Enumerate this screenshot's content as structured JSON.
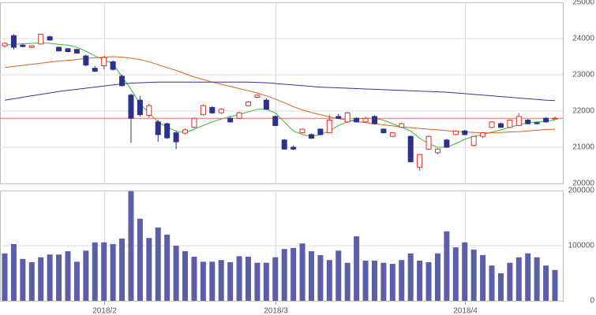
{
  "chart_data": [
    {
      "type": "candlestick",
      "categories": [
        null,
        null,
        null,
        null,
        null,
        null,
        null,
        null,
        null,
        null,
        null,
        "2018/2",
        null,
        null,
        null,
        null,
        null,
        null,
        null,
        null,
        null,
        null,
        null,
        null,
        null,
        null,
        null,
        null,
        null,
        null,
        "2018/3",
        null,
        null,
        null,
        null,
        null,
        null,
        null,
        null,
        null,
        null,
        null,
        null,
        null,
        null,
        null,
        null,
        null,
        null,
        null,
        null,
        "2018/4",
        null,
        null,
        null,
        null,
        null,
        null,
        null,
        null,
        null,
        null
      ],
      "open": [
        23800,
        24080,
        23820,
        23760,
        23850,
        24050,
        23760,
        23720,
        23700,
        23520,
        23180,
        23250,
        23360,
        22960,
        22440,
        22300,
        21880,
        21700,
        21650,
        21400,
        21390,
        21550,
        21900,
        22100,
        21950,
        21800,
        21800,
        22150,
        22380,
        22300,
        21850,
        21200,
        21000,
        21400,
        21350,
        21500,
        21400,
        21850,
        21700,
        21800,
        21700,
        21850,
        21500,
        21300,
        21550,
        21300,
        20450,
        20950,
        20850,
        21200,
        21350,
        21450,
        21050,
        21300,
        21550,
        21650,
        21550,
        21600,
        21750,
        21680,
        21800,
        21780
      ],
      "high": [
        23900,
        24120,
        23850,
        23820,
        24130,
        24080,
        23780,
        23740,
        23720,
        23560,
        23240,
        23520,
        23400,
        23000,
        22480,
        22420,
        22200,
        21760,
        21680,
        21450,
        21520,
        21820,
        22180,
        22130,
        22080,
        21840,
        21980,
        22280,
        22470,
        22350,
        21880,
        21230,
        21050,
        21520,
        21380,
        21520,
        21900,
        21920,
        21980,
        21830,
        21850,
        21880,
        21520,
        21420,
        21670,
        21330,
        20820,
        21320,
        20980,
        21230,
        21470,
        21480,
        21320,
        21420,
        21720,
        21680,
        21770,
        21950,
        21780,
        21700,
        21830,
        21850
      ],
      "low": [
        23750,
        23700,
        23760,
        23740,
        23840,
        23940,
        23640,
        23620,
        23580,
        23230,
        23080,
        23150,
        23120,
        22680,
        21120,
        21850,
        21820,
        21150,
        21230,
        20950,
        21350,
        21530,
        21880,
        21920,
        21920,
        21680,
        21780,
        22130,
        22350,
        22030,
        21580,
        20930,
        20920,
        21380,
        21230,
        21330,
        21380,
        21780,
        21680,
        21680,
        21680,
        21630,
        21380,
        21280,
        21530,
        20580,
        20350,
        20920,
        20800,
        20980,
        21330,
        21330,
        21020,
        21250,
        21530,
        21530,
        21530,
        21580,
        21630,
        21630,
        21680,
        21760
      ],
      "close": [
        23870,
        23760,
        23780,
        23800,
        24120,
        23960,
        23660,
        23640,
        23600,
        23270,
        23100,
        23480,
        23150,
        22700,
        21800,
        21900,
        22150,
        21350,
        21260,
        21150,
        21480,
        21800,
        22150,
        21950,
        22050,
        21700,
        21950,
        22250,
        22440,
        22050,
        21600,
        20950,
        20950,
        21500,
        21250,
        21350,
        21750,
        21800,
        21950,
        21700,
        21800,
        21650,
        21400,
        21400,
        21650,
        20600,
        20800,
        21300,
        20950,
        21000,
        21450,
        21350,
        21300,
        21400,
        21700,
        21550,
        21750,
        21850,
        21650,
        21650,
        21700,
        21800
      ],
      "up_color": "#e03030",
      "down_color": "#2d318c",
      "series": [
        {
          "color": "#33bb33",
          "values": [
            23820,
            23840,
            23860,
            23870,
            23880,
            23870,
            23840,
            23820,
            23760,
            23650,
            23520,
            23420,
            23300,
            22950,
            22600,
            22200,
            21950,
            21700,
            21550,
            21450,
            21400,
            21500,
            21600,
            21700,
            21780,
            21850,
            21900,
            21980,
            22050,
            22050,
            21950,
            21700,
            21450,
            21350,
            21300,
            21350,
            21450,
            21600,
            21700,
            21780,
            21800,
            21800,
            21750,
            21650,
            21550,
            21450,
            21250,
            21100,
            21000,
            21000,
            21100,
            21220,
            21300,
            21350,
            21420,
            21480,
            21550,
            21620,
            21680,
            21700,
            21720,
            21750
          ]
        },
        {
          "color": "#e0601a",
          "values": [
            23200,
            23230,
            23260,
            23290,
            23320,
            23350,
            23380,
            23400,
            23420,
            23450,
            23470,
            23490,
            23500,
            23490,
            23460,
            23420,
            23360,
            23280,
            23200,
            23120,
            23030,
            22940,
            22870,
            22800,
            22740,
            22680,
            22620,
            22560,
            22500,
            22420,
            22330,
            22230,
            22120,
            22030,
            21960,
            21900,
            21840,
            21790,
            21750,
            21710,
            21680,
            21650,
            21620,
            21590,
            21560,
            21540,
            21520,
            21500,
            21480,
            21460,
            21440,
            21420,
            21410,
            21400,
            21400,
            21410,
            21420,
            21430,
            21450,
            21470,
            21490,
            21500
          ]
        },
        {
          "color": "#3a2fa0",
          "values": [
            22300,
            22340,
            22380,
            22420,
            22460,
            22500,
            22540,
            22570,
            22600,
            22630,
            22660,
            22690,
            22720,
            22750,
            22770,
            22780,
            22790,
            22800,
            22800,
            22800,
            22800,
            22800,
            22800,
            22800,
            22800,
            22800,
            22800,
            22800,
            22790,
            22780,
            22760,
            22740,
            22720,
            22700,
            22680,
            22660,
            22650,
            22640,
            22630,
            22620,
            22610,
            22600,
            22590,
            22580,
            22570,
            22560,
            22550,
            22540,
            22530,
            22520,
            22500,
            22480,
            22460,
            22440,
            22420,
            22400,
            22380,
            22360,
            22340,
            22320,
            22300,
            22290
          ]
        }
      ],
      "hline": {
        "value": 21800,
        "color": "#e07070"
      },
      "ylim": [
        20000,
        25000
      ],
      "yticks": [
        20000,
        21000,
        22000,
        23000,
        24000,
        25000
      ],
      "grid": true
    },
    {
      "type": "bar",
      "values": [
        86000,
        103000,
        76000,
        70000,
        79000,
        84000,
        84000,
        90000,
        71000,
        91000,
        106000,
        106000,
        103000,
        113000,
        199000,
        149000,
        114000,
        133000,
        120000,
        100000,
        90000,
        80000,
        71000,
        71000,
        74000,
        70000,
        81000,
        80000,
        69000,
        69000,
        79000,
        94000,
        96000,
        104000,
        90000,
        83000,
        74000,
        91000,
        69000,
        117000,
        73000,
        73000,
        69000,
        67000,
        74000,
        86000,
        73000,
        70000,
        86000,
        126000,
        97000,
        106000,
        93000,
        83000,
        64000,
        50000,
        69000,
        79000,
        86000,
        79000,
        64000,
        56000
      ],
      "color": "#5c5fa8",
      "ylim": [
        0,
        200000
      ],
      "yticks": [
        0,
        100000,
        200000
      ],
      "grid": true
    }
  ]
}
